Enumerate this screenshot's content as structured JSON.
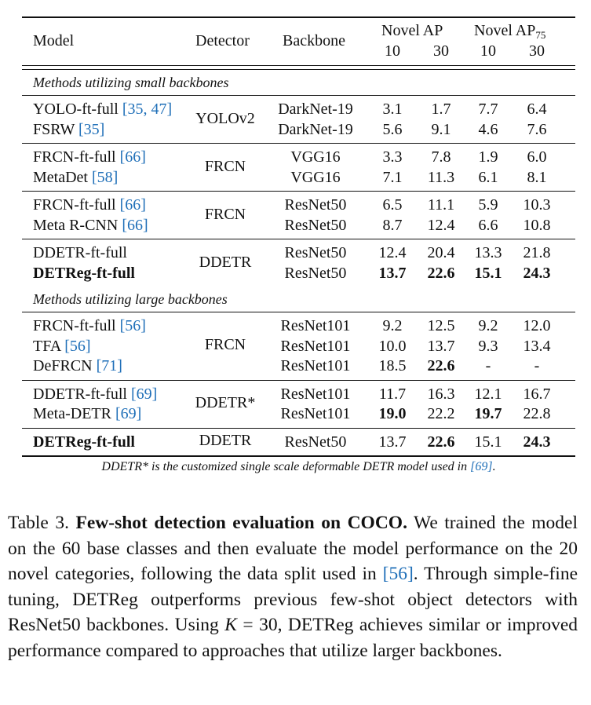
{
  "table": {
    "headers": {
      "model": "Model",
      "detector": "Detector",
      "backbone": "Backbone",
      "novel_ap": "Novel AP",
      "novel_ap75_base": "Novel AP",
      "novel_ap75_sub": "75",
      "k_values": [
        "10",
        "30",
        "10",
        "30"
      ]
    },
    "sections": [
      {
        "title": "Methods utilizing small backbones",
        "groups": [
          {
            "detector": "YOLOv2",
            "rows": [
              {
                "model": "YOLO-ft-full",
                "cite": "[35, 47]",
                "backbone": "DarkNet-19",
                "values": [
                  "3.1",
                  "1.7",
                  "7.7",
                  "6.4"
                ]
              },
              {
                "model": "FSRW",
                "cite": "[35]",
                "backbone": "DarkNet-19",
                "values": [
                  "5.6",
                  "9.1",
                  "4.6",
                  "7.6"
                ]
              }
            ]
          },
          {
            "detector": "FRCN",
            "rows": [
              {
                "model": "FRCN-ft-full",
                "cite": "[66]",
                "backbone": "VGG16",
                "values": [
                  "3.3",
                  "7.8",
                  "1.9",
                  "6.0"
                ]
              },
              {
                "model": "MetaDet",
                "cite": "[58]",
                "backbone": "VGG16",
                "values": [
                  "7.1",
                  "11.3",
                  "6.1",
                  "8.1"
                ]
              }
            ]
          },
          {
            "detector": "FRCN",
            "rows": [
              {
                "model": "FRCN-ft-full",
                "cite": "[66]",
                "backbone": "ResNet50",
                "values": [
                  "6.5",
                  "11.1",
                  "5.9",
                  "10.3"
                ]
              },
              {
                "model": "Meta R-CNN",
                "cite": "[66]",
                "backbone": "ResNet50",
                "values": [
                  "8.7",
                  "12.4",
                  "6.6",
                  "10.8"
                ]
              }
            ]
          },
          {
            "detector": "DDETR",
            "rows": [
              {
                "model": "DDETR-ft-full",
                "cite": "",
                "backbone": "ResNet50",
                "values": [
                  "12.4",
                  "20.4",
                  "13.3",
                  "21.8"
                ]
              },
              {
                "model": "DETReg-ft-full",
                "cite": "",
                "backbone": "ResNet50",
                "values": [
                  "13.7",
                  "22.6",
                  "15.1",
                  "24.3"
                ],
                "bold_model": true,
                "bold_values": [
                  true,
                  true,
                  true,
                  true
                ]
              }
            ]
          }
        ]
      },
      {
        "title": "Methods utilizing large backbones",
        "groups": [
          {
            "detector": "FRCN",
            "rows": [
              {
                "model": "FRCN-ft-full",
                "cite": "[56]",
                "backbone": "ResNet101",
                "values": [
                  "9.2",
                  "12.5",
                  "9.2",
                  "12.0"
                ]
              },
              {
                "model": "TFA",
                "cite": "[56]",
                "backbone": "ResNet101",
                "values": [
                  "10.0",
                  "13.7",
                  "9.3",
                  "13.4"
                ]
              },
              {
                "model": "DeFRCN",
                "cite": "[71]",
                "backbone": "ResNet101",
                "values": [
                  "18.5",
                  "22.6",
                  "-",
                  "-"
                ],
                "bold_values": [
                  false,
                  true,
                  false,
                  false
                ]
              }
            ]
          },
          {
            "detector": "DDETR*",
            "rows": [
              {
                "model": "DDETR-ft-full",
                "cite": "[69]",
                "backbone": "ResNet101",
                "values": [
                  "11.7",
                  "16.3",
                  "12.1",
                  "16.7"
                ]
              },
              {
                "model": "Meta-DETR",
                "cite": "[69]",
                "backbone": "ResNet101",
                "values": [
                  "19.0",
                  "22.2",
                  "19.7",
                  "22.8"
                ],
                "bold_values": [
                  true,
                  false,
                  true,
                  false
                ]
              }
            ]
          },
          {
            "detector": "DDETR",
            "rows": [
              {
                "model": "DETReg-ft-full",
                "cite": "",
                "backbone": "ResNet50",
                "values": [
                  "13.7",
                  "22.6",
                  "15.1",
                  "24.3"
                ],
                "bold_model": true,
                "bold_values": [
                  false,
                  true,
                  false,
                  true
                ]
              }
            ]
          }
        ]
      }
    ],
    "footnote_text": "DDETR* is the customized single scale deformable DETR model used in ",
    "footnote_cite": "[69]",
    "footnote_end": "."
  },
  "caption": {
    "label": "Table 3.",
    "bold_title": "Few-shot detection evaluation on COCO.",
    "text_1": " We trained the model on the 60 base classes and then evaluate the model performance on the 20 novel categories, following the data split used in ",
    "cite": "[56]",
    "text_2": ". Through simple-fine tuning, DETReg outperforms previous few-shot object detectors with ResNet50 backbones. Using ",
    "math_k": "K",
    "text_3": " = 30, DETReg achieves similar or improved performance compared to approaches that utilize larger backbones."
  },
  "colors": {
    "citation": "#1f6fb8",
    "text": "#111111"
  }
}
